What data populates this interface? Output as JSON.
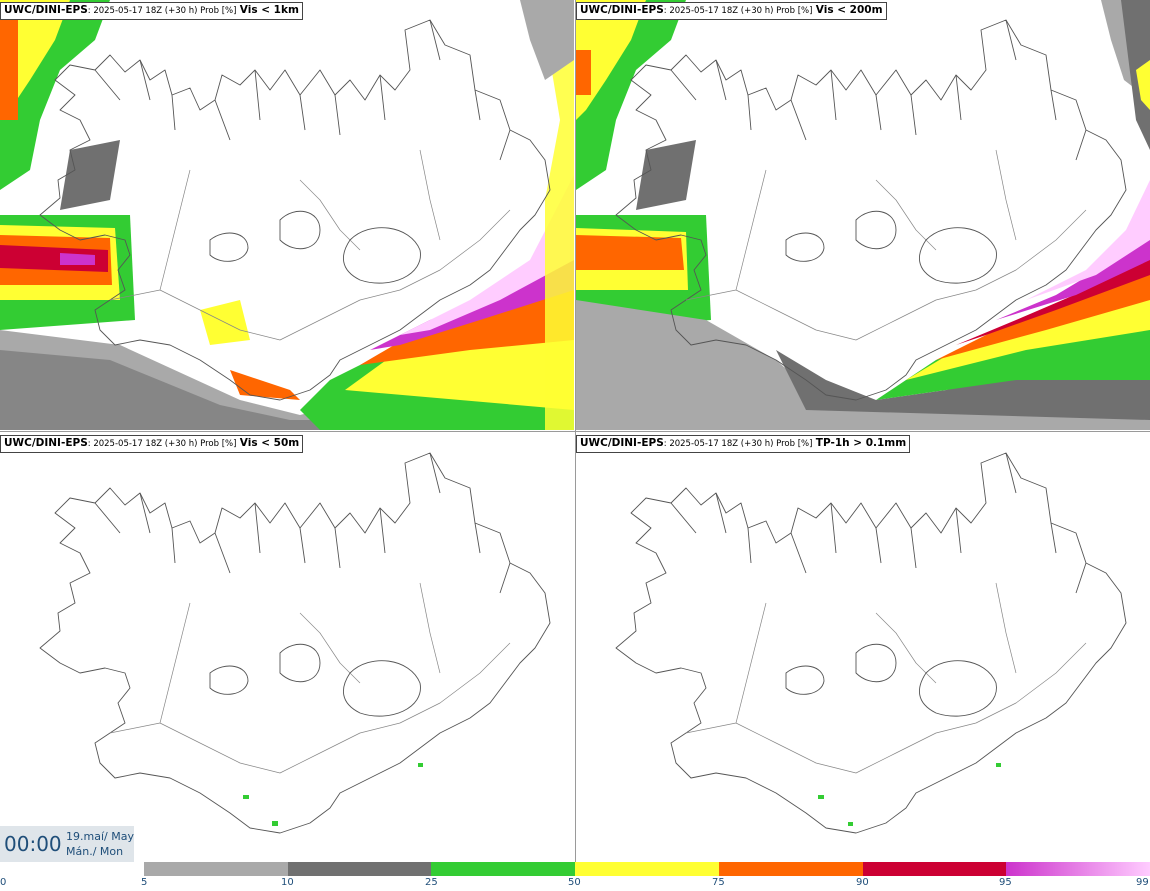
{
  "panels": [
    {
      "source": "UWC/DINI-EPS",
      "meta": ": 2025-05-17 18Z (+30 h) Prob [%]",
      "threshold": "Vis < 1km"
    },
    {
      "source": "UWC/DINI-EPS",
      "meta": ": 2025-05-17 18Z (+30 h) Prob [%]",
      "threshold": "Vis < 200m"
    },
    {
      "source": "UWC/DINI-EPS",
      "meta": ": 2025-05-17 18Z (+30 h) Prob [%]",
      "threshold": "Vis < 50m"
    },
    {
      "source": "UWC/DINI-EPS",
      "meta": ": 2025-05-17 18Z (+30 h) Prob [%]",
      "threshold": "TP-1h > 0.1mm"
    }
  ],
  "time": {
    "clock": "00:00",
    "date_line1": "19.maí/ May",
    "date_line2": "Mán./ Mon"
  },
  "colorbar": {
    "ticks": [
      "0",
      "5",
      "10",
      "25",
      "50",
      "75",
      "90",
      "95",
      "99"
    ],
    "colors": [
      "#a9a9a9",
      "#707070",
      "#33cc33",
      "#ffff33",
      "#ff6600",
      "#cc0033",
      "#cc33cc",
      "#ffccff"
    ]
  }
}
